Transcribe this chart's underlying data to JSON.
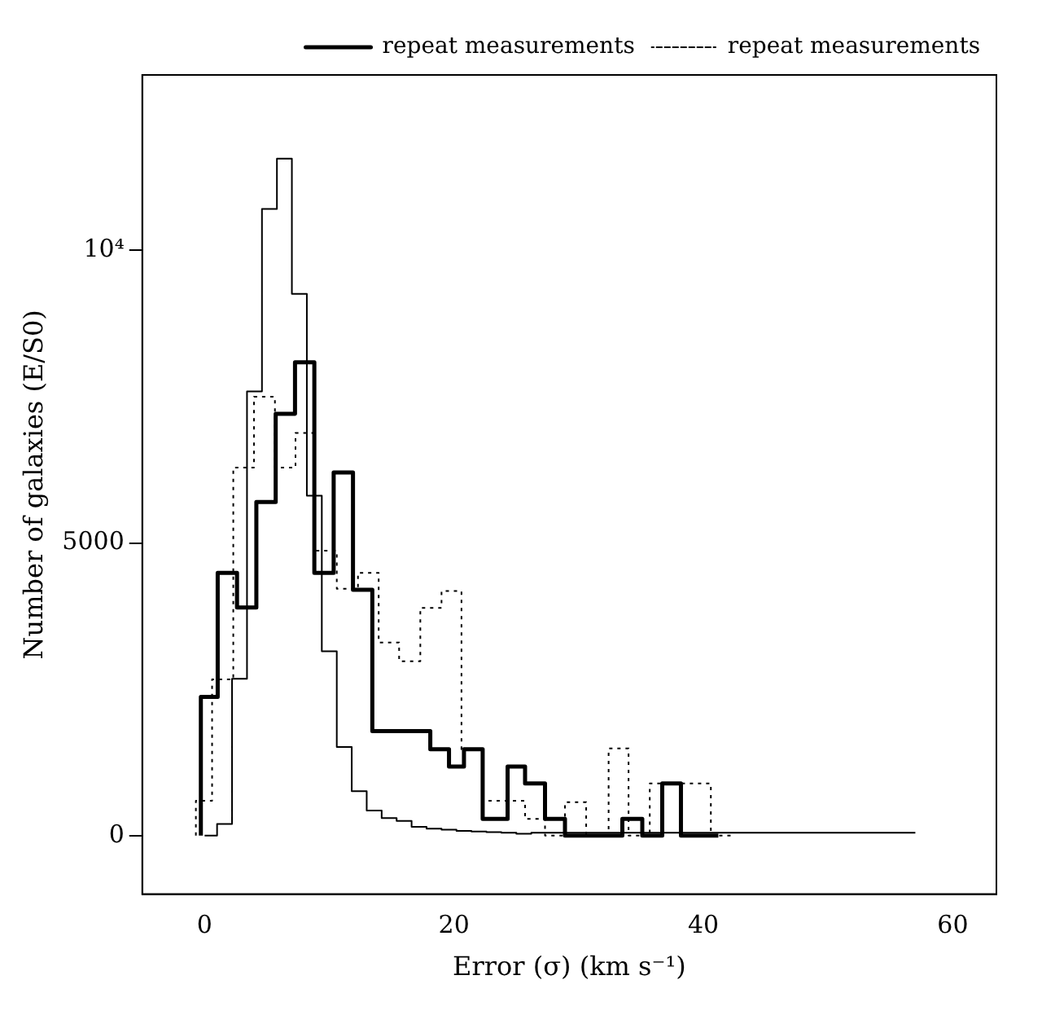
{
  "chart_data": {
    "type": "step",
    "xlabel": "Error (σ) (km s⁻¹)",
    "ylabel": "Number of galaxies (E/S0)",
    "xlim": [
      -5,
      63.5
    ],
    "ylim": [
      -1000,
      13000
    ],
    "xticks": [
      0,
      20,
      40,
      60
    ],
    "yticks": [
      0,
      5000,
      {
        "value": 10000,
        "label": "10⁴"
      }
    ],
    "grid": false,
    "legend": "top right",
    "series": [
      {
        "color": "#000000",
        "line_style": "solid",
        "x": [
          0,
          1.0,
          2.2,
          3.4,
          4.6,
          5.8,
          7.0,
          8.2,
          9.4,
          10.6,
          11.8,
          13.0,
          14.2,
          15.4,
          16.6,
          17.8,
          19.0,
          20.2,
          21.4,
          22.6,
          23.8,
          25.0,
          26.2,
          55.8,
          57.0
        ],
        "values": [
          0,
          0,
          200,
          2680,
          7590,
          10710,
          11570,
          9260,
          5810,
          3150,
          1515,
          760,
          430,
          300,
          250,
          150,
          120,
          100,
          80,
          70,
          60,
          50,
          30,
          50,
          50
        ]
      },
      {
        "name": "repeat measurements",
        "color": "#000000",
        "line_style": "solid",
        "x": [
          -0.3,
          1.05,
          2.6,
          4.15,
          5.7,
          7.25,
          8.8,
          10.35,
          11.9,
          13.45,
          18.1,
          19.6,
          20.8,
          22.3,
          24.3,
          25.7,
          27.3,
          28.9,
          33.5,
          35.1,
          36.7,
          38.2,
          39.9,
          41.2
        ],
        "values": [
          0,
          2370,
          4490,
          3900,
          5700,
          7210,
          8090,
          4490,
          6205,
          4200,
          1785,
          1475,
          1180,
          1475,
          285,
          1180,
          890,
          285,
          0,
          285,
          0,
          890,
          0,
          0
        ]
      },
      {
        "name": "repeat measurements",
        "color": "#000000",
        "line_style": "dotted",
        "x": [
          -0.7,
          0.6,
          2.3,
          3.96,
          5.64,
          7.29,
          8.84,
          10.6,
          12.3,
          13.96,
          15.6,
          17.3,
          19.0,
          20.6,
          22.3,
          25.7,
          27.3,
          28.9,
          30.6,
          32.4,
          34.0,
          35.7,
          40.6,
          42.4
        ],
        "values": [
          0,
          595,
          2670,
          6290,
          7500,
          6290,
          6880,
          4870,
          4220,
          4490,
          3300,
          2980,
          3890,
          4180,
          1475,
          595,
          285,
          0,
          570,
          0,
          1490,
          0,
          890,
          0
        ]
      }
    ]
  }
}
